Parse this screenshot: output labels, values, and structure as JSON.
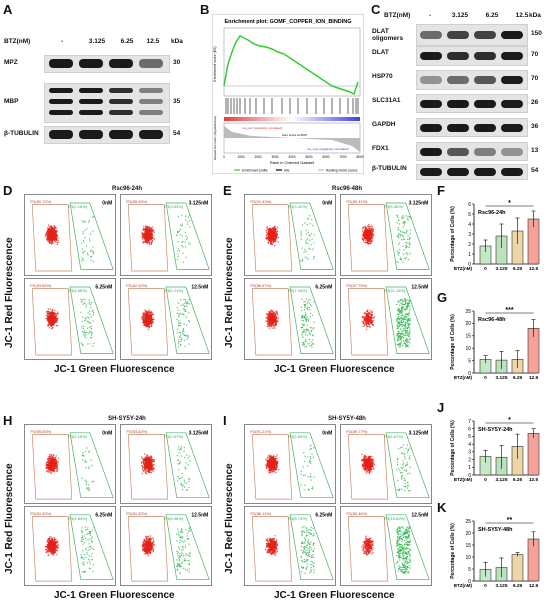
{
  "panel_labels": {
    "A": "A",
    "B": "B",
    "C": "C",
    "D": "D",
    "E": "E",
    "F": "F",
    "G": "G",
    "H": "H",
    "I": "I",
    "J": "J",
    "K": "K"
  },
  "panelA": {
    "btz_label": "BTZ(nM)",
    "concentrations": [
      "-",
      "3.125",
      "6.25",
      "12.5"
    ],
    "kda_header": "kDa",
    "rows": [
      {
        "name": "MPZ",
        "kda": "30"
      },
      {
        "name": "MBP",
        "kda": "35"
      },
      {
        "name": "β-TUBULIN",
        "kda": "54"
      }
    ]
  },
  "panelB": {
    "title": "Enrichment plot: GOMF_COPPER_ION_BINDING",
    "ylabel_top": "Enrichment score (ES)",
    "ylabel_bottom": "Ranked list metric (Signal2Noise)",
    "xlabel": "Rank in Ordered Dataset",
    "legend": [
      "Enrichment profile",
      "Hits",
      "Ranking metric scores"
    ],
    "xticks": [
      "0",
      "1000",
      "2000",
      "3000",
      "4000",
      "5000",
      "6000",
      "7000",
      "8000"
    ],
    "annotation_pos": "'na_pos' (positively correlated)",
    "annotation_zero": "Zero score at 4937",
    "annotation_neg": "'na_neg' (negatively correlated)"
  },
  "panelC": {
    "btz_label": "BTZ(nM)",
    "concentrations": [
      "-",
      "3.125",
      "6.25",
      "12.5"
    ],
    "kda_header": "kDa",
    "rows": [
      {
        "name": "DLAT oligomers",
        "kda": "150"
      },
      {
        "name": "DLAT",
        "kda": "70"
      },
      {
        "name": "HSP70",
        "kda": "70"
      },
      {
        "name": "SLC31A1",
        "kda": "26"
      },
      {
        "name": "GAPDH",
        "kda": "36"
      },
      {
        "name": "FDX1",
        "kda": "13"
      },
      {
        "name": "β-TUBULIN",
        "kda": "54"
      }
    ]
  },
  "flow_panels": {
    "D": {
      "title": "Rsc96-24h",
      "cells": [
        {
          "conc": "0nM",
          "red": "P2(80.72%)",
          "green": "P3(2.16%)"
        },
        {
          "conc": "3.125nM",
          "red": "P2(85.45%)",
          "green": "P3(3.53%)"
        },
        {
          "conc": "6.25nM",
          "red": "P2(83.85%)",
          "green": "P3(4.56%)"
        },
        {
          "conc": "12.5nM",
          "red": "P2(82.42%)",
          "green": "P3(5.21%)"
        }
      ]
    },
    "E": {
      "title": "Rsc96-48h",
      "cells": [
        {
          "conc": "0nM",
          "red": "P2(91.42%)",
          "green": "P3(3.42%)"
        },
        {
          "conc": "3.125nM",
          "red": "P2(89.41%)",
          "green": "P3(5.36%)"
        },
        {
          "conc": "6.25nM",
          "red": "P2(86.67%)",
          "green": "P3(7.16%)"
        },
        {
          "conc": "12.5nM",
          "red": "P2(67.75%)",
          "green": "P3(21.15%)"
        }
      ]
    },
    "H": {
      "title": "SH-SY5Y-24h",
      "cells": [
        {
          "conc": "0nM",
          "red": "P2(85.55%)",
          "green": "P3(2.16%)"
        },
        {
          "conc": "3.125nM",
          "red": "P2(83.52%)",
          "green": "P3(2.57%)"
        },
        {
          "conc": "6.25nM",
          "red": "P2(81.52%)",
          "green": "P3(4.84%)"
        },
        {
          "conc": "12.5nM",
          "red": "P2(81.32%)",
          "green": "P3(6.06%)"
        }
      ]
    },
    "I": {
      "title": "SH-SY5Y-48h",
      "cells": [
        {
          "conc": "0nM",
          "red": "P2(91.21%)",
          "green": "P3(2.89%)"
        },
        {
          "conc": "3.125nM",
          "red": "P2(89.77%)",
          "green": "P3(4.67%)"
        },
        {
          "conc": "6.25nM",
          "red": "P2(86.11%)",
          "green": "P3(8.74%)"
        },
        {
          "conc": "12.5nM",
          "red": "P2(80.46%)",
          "green": "P3(18.60%)"
        }
      ]
    }
  },
  "flow_axes": {
    "ylabel": "JC-1 Red Fluorescence",
    "xlabel": "JC-1 Green Fluorescence"
  },
  "chart_data": [
    {
      "type": "bar",
      "panel": "F",
      "title": "Rsc96-24h",
      "ylabel": "Percentage of Cells (%)",
      "xlabel": "BTZ(nM)",
      "categories": [
        "0",
        "3.125",
        "6.25",
        "12.5"
      ],
      "values": [
        1.8,
        2.8,
        3.3,
        4.5
      ],
      "errors": [
        0.6,
        1.2,
        1.3,
        0.8
      ],
      "ylim": [
        0,
        6
      ],
      "yticks": [
        "0",
        "1",
        "2",
        "3",
        "4",
        "5",
        "6"
      ],
      "significance": "*"
    },
    {
      "type": "bar",
      "panel": "G",
      "title": "Rsc96-48h",
      "ylabel": "Percentage of Cells (%)",
      "xlabel": "BTZ(nM)",
      "categories": [
        "0",
        "3.125",
        "6.25",
        "12.5"
      ],
      "values": [
        5.5,
        5.2,
        5.5,
        18.0
      ],
      "errors": [
        1.5,
        3.5,
        3.5,
        3.5
      ],
      "ylim": [
        0,
        25
      ],
      "yticks": [
        "0",
        "5",
        "10",
        "15",
        "20",
        "25"
      ],
      "significance": "***"
    },
    {
      "type": "bar",
      "panel": "J",
      "title": "SH-SY5Y-24h",
      "ylabel": "Percentage of Cells (%)",
      "xlabel": "BTZ(nM)",
      "categories": [
        "0",
        "3.125",
        "6.25",
        "12.5"
      ],
      "values": [
        2.4,
        2.3,
        3.7,
        5.4
      ],
      "errors": [
        0.8,
        1.5,
        1.6,
        0.6
      ],
      "ylim": [
        0,
        7
      ],
      "yticks": [
        "0",
        "1",
        "2",
        "3",
        "4",
        "5",
        "6",
        "7"
      ],
      "significance": "*"
    },
    {
      "type": "bar",
      "panel": "K",
      "title": "SH-SY5Y-48h",
      "ylabel": "Percentage of Cells (%)",
      "xlabel": "BTZ(nM)",
      "categories": [
        "0",
        "3.125",
        "6.25",
        "12.5"
      ],
      "values": [
        4.8,
        5.6,
        11.0,
        17.5
      ],
      "errors": [
        3.0,
        4.0,
        0.8,
        3.0
      ],
      "ylim": [
        0,
        25
      ],
      "yticks": [
        "0",
        "5",
        "10",
        "15",
        "20",
        "25"
      ],
      "significance": "**"
    }
  ],
  "colors": {
    "bar_colors": [
      "#c6e8c6",
      "#bde0bd",
      "#ecd6a8",
      "#f4a39a"
    ],
    "bar_stroke": "#333333",
    "red_dots": "#e2231a",
    "green_dots": "#2bb34a",
    "gsea_line": "#32cd32"
  }
}
